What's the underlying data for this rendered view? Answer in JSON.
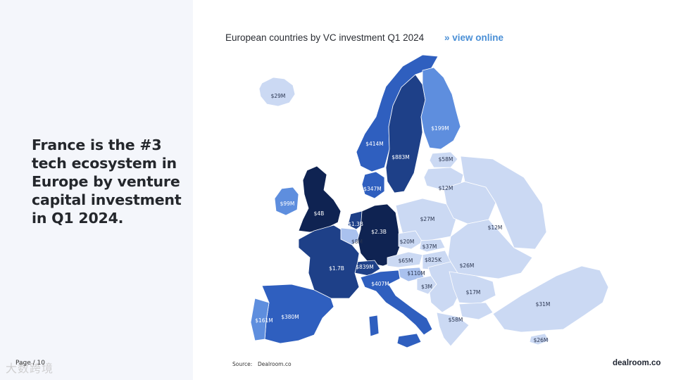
{
  "headline": "France is the #3 tech ecosystem in Europe by venture capital investment in Q1 2024.",
  "map": {
    "title": "European countries by VC investment Q1 2024",
    "view_online": "» view online",
    "colors": {
      "tier1": "#0f2352",
      "tier2": "#1e4088",
      "tier3": "#2f5fbf",
      "tier4": "#5e8ede",
      "tier5": "#a9c1ee",
      "tier6": "#cbd9f3",
      "water": "#ffffff"
    },
    "countries": [
      {
        "name": "Iceland",
        "value": "$29M",
        "tier": "tier6"
      },
      {
        "name": "Norway",
        "value": "$414M",
        "tier": "tier3"
      },
      {
        "name": "Sweden",
        "value": "$883M",
        "tier": "tier2"
      },
      {
        "name": "Finland",
        "value": "$199M",
        "tier": "tier4"
      },
      {
        "name": "Estonia",
        "value": "$58M",
        "tier": "tier6"
      },
      {
        "name": "Latvia",
        "value": "$12M",
        "tier": "tier6"
      },
      {
        "name": "Denmark",
        "value": "$347M",
        "tier": "tier3"
      },
      {
        "name": "Ireland",
        "value": "$99M",
        "tier": "tier4"
      },
      {
        "name": "United Kingdom",
        "value": "$4B",
        "tier": "tier1"
      },
      {
        "name": "Netherlands",
        "value": "$1.3B",
        "tier": "tier2"
      },
      {
        "name": "Belgium",
        "value": "$8M",
        "tier": "tier5"
      },
      {
        "name": "Germany",
        "value": "$2.3B",
        "tier": "tier1"
      },
      {
        "name": "Poland",
        "value": "$27M",
        "tier": "tier6"
      },
      {
        "name": "Belarus",
        "value": "$12M",
        "tier": "tier6"
      },
      {
        "name": "Czechia",
        "value": "$20M",
        "tier": "tier6"
      },
      {
        "name": "Slovakia",
        "value": "$37M",
        "tier": "tier6"
      },
      {
        "name": "Austria",
        "value": "$65M",
        "tier": "tier6"
      },
      {
        "name": "Hungary",
        "value": "$825K",
        "tier": "tier6"
      },
      {
        "name": "Ukraine",
        "value": "$26M",
        "tier": "tier6"
      },
      {
        "name": "France",
        "value": "$1.7B",
        "tier": "tier2"
      },
      {
        "name": "Switzerland",
        "value": "$839M",
        "tier": "tier2"
      },
      {
        "name": "Slovenia",
        "value": "$110M",
        "tier": "tier5"
      },
      {
        "name": "Croatia",
        "value": "$3M",
        "tier": "tier6"
      },
      {
        "name": "Italy",
        "value": "$407M",
        "tier": "tier3"
      },
      {
        "name": "Romania",
        "value": "$17M",
        "tier": "tier6"
      },
      {
        "name": "Greece",
        "value": "$58M",
        "tier": "tier6"
      },
      {
        "name": "Turkey",
        "value": "$31M",
        "tier": "tier6"
      },
      {
        "name": "Cyprus",
        "value": "$26M",
        "tier": "tier6"
      },
      {
        "name": "Spain",
        "value": "$380M",
        "tier": "tier3"
      },
      {
        "name": "Portugal",
        "value": "$161M",
        "tier": "tier4"
      }
    ]
  },
  "source": {
    "label": "Source:",
    "value": "Dealroom.co"
  },
  "brand": "dealroom.co",
  "page": "Page / 10",
  "watermark": "大数跨境"
}
